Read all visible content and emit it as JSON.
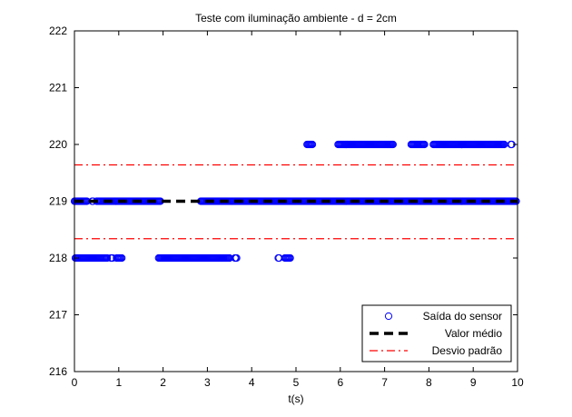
{
  "chart_data": {
    "type": "scatter",
    "title": "Teste com iluminação ambiente - d = 2cm",
    "xlabel": "t(s)",
    "ylabel": "",
    "xlim": [
      0,
      10
    ],
    "ylim": [
      216,
      222
    ],
    "xticks": [
      0,
      1,
      2,
      3,
      4,
      5,
      6,
      7,
      8,
      9,
      10
    ],
    "yticks": [
      216,
      217,
      218,
      219,
      220,
      221,
      222
    ],
    "grid": false,
    "legend_position": "bottom-right",
    "series": [
      {
        "name": "Saída do sensor",
        "kind": "markers",
        "marker": "circle",
        "color": "#0000ff",
        "segments": [
          {
            "y": 218,
            "x_start": 0.02,
            "x_end": 0.75
          },
          {
            "y": 218,
            "x_start": 0.82,
            "x_end": 0.86
          },
          {
            "y": 218,
            "x_start": 0.95,
            "x_end": 1.08
          },
          {
            "y": 218,
            "x_start": 1.9,
            "x_end": 3.5
          },
          {
            "y": 218,
            "x_start": 3.62,
            "x_end": 3.66
          },
          {
            "y": 218,
            "x_start": 4.6,
            "x_end": 4.62
          },
          {
            "y": 218,
            "x_start": 4.75,
            "x_end": 4.88
          },
          {
            "y": 219,
            "x_start": 0.0,
            "x_end": 0.28
          },
          {
            "y": 219,
            "x_start": 0.4,
            "x_end": 0.42
          },
          {
            "y": 219,
            "x_start": 0.5,
            "x_end": 1.95
          },
          {
            "y": 219,
            "x_start": 2.85,
            "x_end": 9.98
          },
          {
            "y": 220,
            "x_start": 5.25,
            "x_end": 5.38
          },
          {
            "y": 220,
            "x_start": 5.95,
            "x_end": 7.2
          },
          {
            "y": 220,
            "x_start": 7.6,
            "x_end": 7.9
          },
          {
            "y": 220,
            "x_start": 8.1,
            "x_end": 9.7
          },
          {
            "y": 220,
            "x_start": 9.85,
            "x_end": 9.87
          }
        ]
      },
      {
        "name": "Valor médio",
        "kind": "line",
        "style": "dashed",
        "color": "#000000",
        "y": 219.0
      },
      {
        "name": "Desvio padrão",
        "kind": "line",
        "style": "dashdot",
        "color": "#ff0000",
        "y_values": [
          219.64,
          218.34
        ]
      }
    ]
  }
}
